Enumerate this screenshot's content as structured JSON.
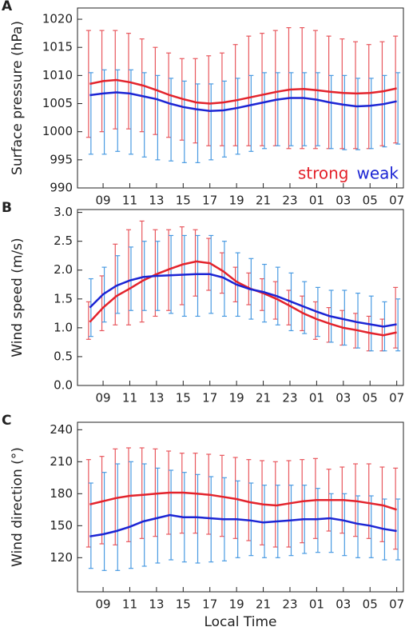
{
  "chart_data": [
    {
      "type": "line",
      "panel": "A",
      "ylabel": "Surface pressure (hPa)",
      "categories": [
        null,
        "09",
        null,
        "11",
        null,
        "13",
        null,
        "15",
        null,
        "17",
        null,
        "19",
        null,
        "21",
        null,
        "23",
        null,
        "01",
        null,
        "03",
        null,
        "05",
        null,
        "07"
      ],
      "ylim": [
        990,
        1022
      ],
      "yticks": [
        990,
        995,
        1000,
        1005,
        1010,
        1015,
        1020
      ],
      "legend": "lower right",
      "series": [
        {
          "name": "strong",
          "color": "#e3232c",
          "error_color": "#e8575d",
          "values": [
            1008.5,
            1009,
            1009.2,
            1008.8,
            1008.2,
            1007.4,
            1006.5,
            1005.8,
            1005.2,
            1005,
            1005.2,
            1005.6,
            1006.1,
            1006.6,
            1007.1,
            1007.5,
            1007.6,
            1007.4,
            1007.1,
            1006.9,
            1006.8,
            1006.9,
            1007.2,
            1007.7
          ],
          "upper": [
            1018,
            1018,
            1018,
            1017.5,
            1016.5,
            1015,
            1014,
            1013,
            1013,
            1013.5,
            1014,
            1015.5,
            1017,
            1017.5,
            1018,
            1018.5,
            1018.5,
            1018,
            1017,
            1016.5,
            1016,
            1015.5,
            1016,
            1017
          ],
          "lower": [
            999,
            1000,
            1000.5,
            1000.5,
            1000,
            999.5,
            999,
            998.5,
            998,
            997.5,
            997.5,
            997.5,
            997.5,
            997.5,
            997.5,
            997,
            997,
            997,
            997,
            997,
            997,
            997,
            997.5,
            998
          ]
        },
        {
          "name": "weak",
          "color": "#1c25d4",
          "error_color": "#4a9be2",
          "values": [
            1006.5,
            1006.8,
            1007,
            1006.8,
            1006.3,
            1005.8,
            1005,
            1004.4,
            1004,
            1003.7,
            1003.8,
            1004.2,
            1004.7,
            1005.2,
            1005.7,
            1006,
            1006,
            1005.7,
            1005.2,
            1004.8,
            1004.5,
            1004.6,
            1004.9,
            1005.4
          ],
          "upper": [
            1010.5,
            1011,
            1011,
            1011,
            1010.5,
            1010,
            1009.5,
            1009,
            1008.5,
            1008.5,
            1009,
            1009.5,
            1010,
            1010.5,
            1010.5,
            1010.5,
            1010.5,
            1010.5,
            1010,
            1010,
            1009.5,
            1009.5,
            1010,
            1010.5
          ],
          "lower": [
            996,
            996,
            996.5,
            996,
            995.5,
            995,
            994.8,
            994.5,
            994.5,
            995,
            995.5,
            996,
            996.5,
            997,
            997.5,
            997.5,
            997.5,
            997.5,
            997,
            996.8,
            996.8,
            997,
            997.3,
            997.8
          ]
        }
      ]
    },
    {
      "type": "line",
      "panel": "B",
      "ylabel": "Wind speed (m/s)",
      "categories": [
        null,
        "09",
        null,
        "11",
        null,
        "13",
        null,
        "15",
        null,
        "17",
        null,
        "19",
        null,
        "21",
        null,
        "23",
        null,
        "01",
        null,
        "03",
        null,
        "05",
        null,
        "07"
      ],
      "ylim": [
        0,
        3.05
      ],
      "yticks": [
        {
          "value": 0,
          "label": "0.0"
        },
        0.5,
        {
          "value": 1,
          "label": "1.0"
        },
        1.5,
        {
          "value": 2,
          "label": "2.0"
        },
        2.5,
        {
          "value": 3,
          "label": "3.0"
        }
      ],
      "series": [
        {
          "color": "#e3232c",
          "error_color": "#e8575d",
          "values": [
            1.1,
            1.35,
            1.55,
            1.68,
            1.82,
            1.93,
            2.02,
            2.1,
            2.15,
            2.12,
            1.98,
            1.8,
            1.68,
            1.6,
            1.5,
            1.38,
            1.25,
            1.15,
            1.07,
            1.0,
            0.96,
            0.91,
            0.87,
            0.92
          ],
          "upper": [
            1.45,
            1.9,
            2.45,
            2.7,
            2.85,
            2.7,
            2.7,
            2.75,
            2.7,
            2.55,
            2.3,
            2.05,
            1.95,
            1.85,
            1.8,
            1.65,
            1.55,
            1.45,
            1.35,
            1.3,
            1.25,
            1.2,
            1.15,
            1.7
          ],
          "lower": [
            0.8,
            0.95,
            1.05,
            1.05,
            1.1,
            1.2,
            1.3,
            1.4,
            1.55,
            1.65,
            1.6,
            1.45,
            1.4,
            1.3,
            1.15,
            1.05,
            0.95,
            0.8,
            0.75,
            0.7,
            0.65,
            0.6,
            0.6,
            0.65
          ]
        },
        {
          "color": "#1c25d4",
          "error_color": "#4a9be2",
          "values": [
            1.35,
            1.58,
            1.73,
            1.82,
            1.88,
            1.9,
            1.91,
            1.92,
            1.93,
            1.93,
            1.87,
            1.75,
            1.67,
            1.62,
            1.55,
            1.46,
            1.37,
            1.28,
            1.2,
            1.15,
            1.1,
            1.06,
            1.02,
            1.06
          ],
          "upper": [
            1.85,
            2.05,
            2.25,
            2.4,
            2.5,
            2.5,
            2.6,
            2.6,
            2.6,
            2.6,
            2.5,
            2.3,
            2.2,
            2.1,
            2.05,
            1.95,
            1.8,
            1.7,
            1.65,
            1.65,
            1.6,
            1.55,
            1.45,
            1.5
          ],
          "lower": [
            0.85,
            1.1,
            1.25,
            1.3,
            1.3,
            1.3,
            1.25,
            1.2,
            1.2,
            1.25,
            1.2,
            1.2,
            1.15,
            1.1,
            1.05,
            0.95,
            0.9,
            0.85,
            0.75,
            0.7,
            0.65,
            0.6,
            0.6,
            0.6
          ]
        }
      ]
    },
    {
      "type": "line",
      "panel": "C",
      "ylabel": "Wind direction (°)",
      "xlabel": "Local Time",
      "categories": [
        null,
        "09",
        null,
        "11",
        null,
        "13",
        null,
        "15",
        null,
        "17",
        null,
        "19",
        null,
        "21",
        null,
        "23",
        null,
        "01",
        null,
        "03",
        null,
        "05",
        null,
        "07"
      ],
      "ylim": [
        88,
        247
      ],
      "yticks": [
        120,
        150,
        180,
        210,
        240
      ],
      "series": [
        {
          "color": "#e3232c",
          "error_color": "#e8575d",
          "values": [
            170,
            173,
            176,
            178,
            179,
            180,
            181,
            181,
            180,
            179,
            177,
            175,
            172,
            170,
            169,
            171,
            173,
            174,
            174,
            174,
            173,
            171,
            169,
            165
          ],
          "upper": [
            212,
            215,
            222,
            223,
            223,
            222,
            220,
            218,
            218,
            217,
            216,
            214,
            212,
            211,
            210,
            211,
            212,
            213,
            203,
            205,
            208,
            208,
            205,
            204
          ],
          "lower": [
            130,
            133,
            132,
            135,
            138,
            140,
            142,
            143,
            143,
            142,
            140,
            138,
            136,
            132,
            130,
            130,
            134,
            138,
            145,
            143,
            140,
            138,
            135,
            128
          ]
        },
        {
          "color": "#1c25d4",
          "error_color": "#4a9be2",
          "values": [
            140,
            142,
            145,
            149,
            154,
            157,
            160,
            158,
            158,
            157,
            156,
            156,
            155,
            153,
            154,
            155,
            156,
            156,
            157,
            155,
            152,
            150,
            147,
            145
          ],
          "upper": [
            190,
            200,
            208,
            210,
            208,
            204,
            202,
            200,
            198,
            196,
            195,
            192,
            190,
            188,
            188,
            188,
            188,
            185,
            180,
            180,
            178,
            178,
            175,
            175
          ],
          "lower": [
            110,
            108,
            108,
            110,
            112,
            115,
            118,
            116,
            115,
            116,
            117,
            120,
            122,
            120,
            120,
            122,
            124,
            125,
            125,
            122,
            120,
            120,
            118,
            118
          ]
        }
      ]
    }
  ]
}
